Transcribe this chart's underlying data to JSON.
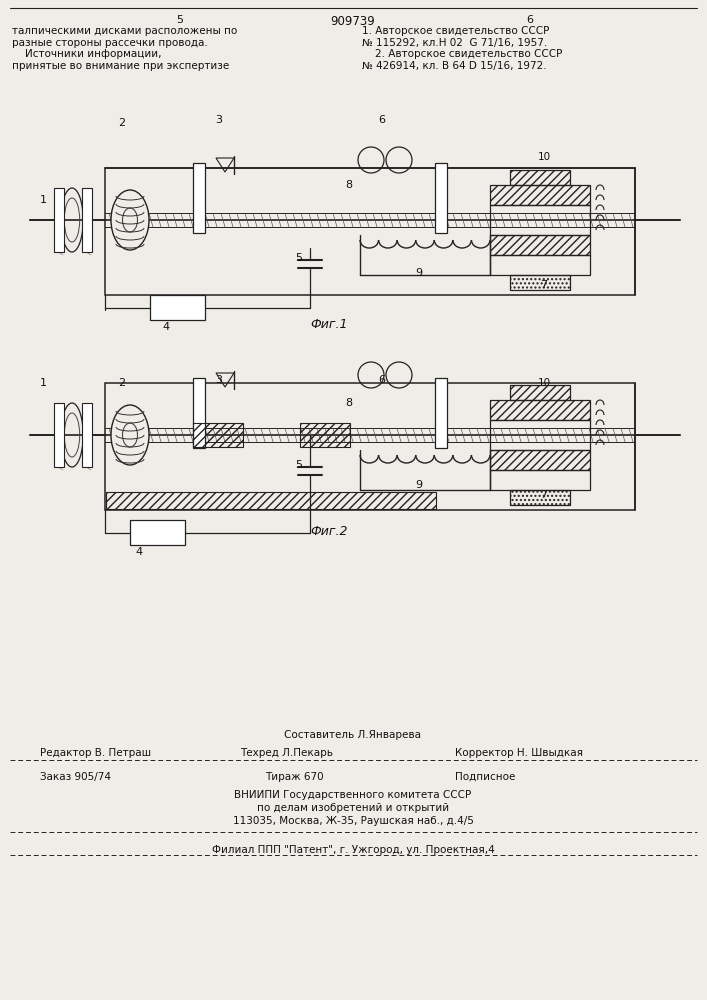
{
  "bg_color": "#f0ede8",
  "page_num_left": "5",
  "page_num_center": "909739",
  "page_num_right": "6",
  "top_left_text": "талпическими дисками расположены по\nразные стороны рассечки провода.\n    Источники информации,\nпринятые во внимание при экспертизе",
  "top_right_text": "1. Авторское свидетельство СССР\n№ 115292, кл.Н 02  G 71/16, 1957.\n    2. Авторское свидетельство СССР\n№ 426914, кл. В 64 D 15/16, 1972.",
  "fig1_caption": "Фиг.1",
  "fig2_caption": "Фиг.2",
  "footer_line1": "Составитель Л.Январева",
  "footer_line2_left": "Редактор В. Петраш",
  "footer_line2_mid": "Техред Л.Пекарь",
  "footer_line2_right": "Корректор Н. Швыдкая",
  "footer_line3_left": "Заказ 905/74",
  "footer_line3_mid": "Тираж 670",
  "footer_line3_right": "Подписное",
  "footer_line4": "ВНИИПИ Государственного комитета СССР",
  "footer_line5": "по делам изобретений и открытий",
  "footer_line6": "113035, Москва, Ж-35, Раушская наб., д.4/5",
  "footer_line7": "Филиал ППП \"Патент\", г. Ужгород, ул. Проектная,4"
}
